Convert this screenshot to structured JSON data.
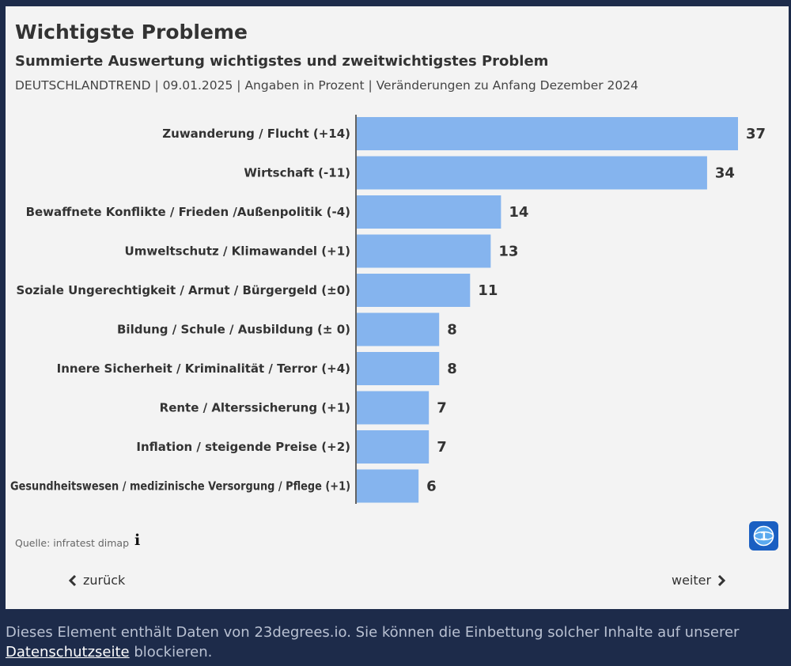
{
  "header": {
    "title": "Wichtigste Probleme",
    "subtitle": "Summierte Auswertung wichtigstes und zweitwichtigstes Problem",
    "meta": "DEUTSCHLANDTREND | 09.01.2025 | Angaben in Prozent | Veränderungen zu Anfang Dezember 2024"
  },
  "chart_data": {
    "type": "bar",
    "orientation": "horizontal",
    "title": "Wichtigste Probleme",
    "subtitle": "Summierte Auswertung wichtigstes und zweitwichtigstes Problem",
    "categories": [
      "Zuwanderung / Flucht (+14)",
      "Wirtschaft (-11)",
      "Bewaffnete Konflikte / Frieden /Außenpolitik (-4)",
      "Umweltschutz / Klimawandel (+1)",
      "Soziale Ungerechtigkeit / Armut / Bürgergeld (±0)",
      "Bildung / Schule / Ausbildung (± 0)",
      "Innere Sicherheit / Kriminalität / Terror (+4)",
      "Rente / Alterssicherung (+1)",
      "Inflation / steigende Preise (+2)",
      "Gesundheitswesen / medizinische Versorgung / Pflege (+1)"
    ],
    "values": [
      37,
      34,
      14,
      13,
      11,
      8,
      8,
      7,
      7,
      6
    ],
    "bar_color": "#85b4ee",
    "xlim": [
      0,
      37
    ],
    "grid": false,
    "xlabel": "",
    "ylabel": ""
  },
  "footer": {
    "source": "Quelle: infratest dimap",
    "info_icon": "info-icon",
    "logo_icon": "tagesschau-logo-icon",
    "back_label": "zurück",
    "next_label": "weiter"
  },
  "notice": {
    "text_before": "Dieses Element enthält Daten von 23degrees.io. Sie können die Einbettung solcher Inhalte auf unserer ",
    "link_text": "Datenschutzseite",
    "text_after": " blockieren."
  },
  "colors": {
    "page_background": "#1d2b4a",
    "card_background": "#f3f3f3",
    "bar": "#85b4ee",
    "logo": "#1a5fc2"
  }
}
